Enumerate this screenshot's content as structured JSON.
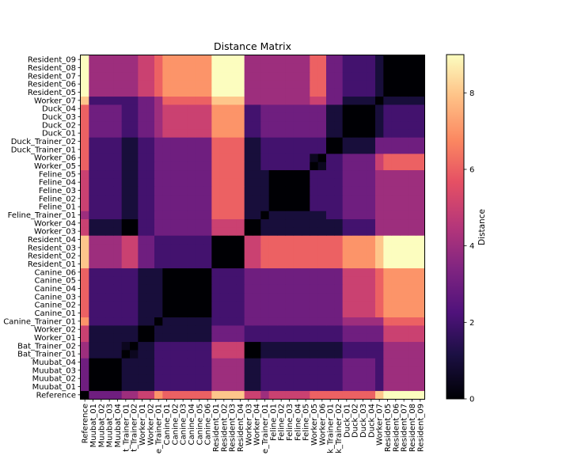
{
  "chart_data": {
    "type": "heatmap",
    "title": "Distance Matrix",
    "colorbar_label": "Distance",
    "colormap": "magma",
    "vmin": 0,
    "vmax": 9,
    "colorbar_ticks": [
      0,
      2,
      4,
      6,
      8
    ],
    "labels": [
      "Reference",
      "Muubat_01",
      "Muubat_02",
      "Muubat_03",
      "Muubat_04",
      "Bat_Trainer_01",
      "Bat_Trainer_02",
      "Worker_01",
      "Worker_02",
      "Canine_Trainer_01",
      "Canine_01",
      "Canine_02",
      "Canine_03",
      "Canine_04",
      "Canine_05",
      "Canine_06",
      "Resident_01",
      "Resident_02",
      "Resident_03",
      "Resident_04",
      "Worker_03",
      "Worker_04",
      "Feline_Trainer_01",
      "Feline_01",
      "Feline_02",
      "Feline_03",
      "Feline_04",
      "Feline_05",
      "Worker_05",
      "Worker_06",
      "Duck_Trainer_01",
      "Duck_Trainer_02",
      "Duck_01",
      "Duck_02",
      "Duck_03",
      "Duck_04",
      "Worker_07",
      "Resident_05",
      "Resident_06",
      "Resident_07",
      "Resident_08",
      "Resident_09"
    ],
    "x_tick_labels": [
      "Reference",
      "Muubat_01",
      "Muubat_02",
      "Muubat_03",
      "Muubat_04",
      "t_Trainer_01",
      "t_Trainer_02",
      "Worker_01",
      "Worker_02",
      "e_Trainer_01",
      "Canine_01",
      "Canine_02",
      "Canine_03",
      "Canine_04",
      "Canine_05",
      "Canine_06",
      "Resident_01",
      "Resident_02",
      "Resident_03",
      "Resident_04",
      "Worker_03",
      "Worker_04",
      "e_Trainer_01",
      "Feline_01",
      "Feline_02",
      "Feline_03",
      "Feline_04",
      "Feline_05",
      "Worker_05",
      "Worker_06",
      "k_Trainer_01",
      "k_Trainer_02",
      "Duck_01",
      "Duck_02",
      "Duck_03",
      "Duck_04",
      "Worker_07",
      "Resident_05",
      "Resident_06",
      "Resident_07",
      "Resident_08",
      "Resident_09"
    ],
    "y_tick_labels": [
      "Reference",
      "Muubat_01",
      "Muubat_02",
      "Muubat_03",
      "Muubat_04",
      "Bat_Trainer_01",
      "Bat_Trainer_02",
      "Worker_01",
      "Worker_02",
      "Canine_Trainer_01",
      "Canine_01",
      "Canine_02",
      "Canine_03",
      "Canine_04",
      "Canine_05",
      "Canine_06",
      "Resident_01",
      "Resident_02",
      "Resident_03",
      "Resident_04",
      "Worker_03",
      "Worker_04",
      "Feline_Trainer_01",
      "Feline_01",
      "Feline_02",
      "Feline_03",
      "Feline_04",
      "Feline_05",
      "Worker_05",
      "Worker_06",
      "Duck_Trainer_01",
      "Duck_Trainer_02",
      "Duck_01",
      "Duck_02",
      "Duck_03",
      "Duck_04",
      "Worker_07",
      "Resident_05",
      "Resident_06",
      "Resident_07",
      "Resident_08",
      "Resident_09"
    ],
    "groups": [
      {
        "start": 0,
        "end": 1
      },
      {
        "start": 1,
        "end": 5
      },
      {
        "start": 5,
        "end": 7
      },
      {
        "start": 7,
        "end": 9
      },
      {
        "start": 9,
        "end": 10
      },
      {
        "start": 10,
        "end": 16
      },
      {
        "start": 16,
        "end": 20
      },
      {
        "start": 20,
        "end": 22
      },
      {
        "start": 22,
        "end": 23
      },
      {
        "start": 23,
        "end": 28
      },
      {
        "start": 28,
        "end": 30
      },
      {
        "start": 30,
        "end": 32
      },
      {
        "start": 32,
        "end": 36
      },
      {
        "start": 36,
        "end": 37
      },
      {
        "start": 37,
        "end": 42
      }
    ],
    "group_distances": [
      [
        0,
        3,
        4,
        5,
        7,
        6,
        8,
        5,
        4,
        5,
        6,
        6,
        6,
        8,
        9
      ],
      [
        3,
        0,
        1,
        1,
        2,
        2,
        4,
        1,
        2,
        2,
        2,
        2,
        3,
        2,
        4
      ],
      [
        4,
        1,
        0.5,
        1,
        2,
        2,
        5,
        0,
        1,
        1,
        1,
        1,
        2,
        2,
        4
      ],
      [
        5,
        1,
        1,
        0,
        1,
        1,
        3,
        2,
        2,
        2,
        2,
        2,
        3,
        3,
        5
      ],
      [
        7,
        2,
        2,
        1,
        0,
        1,
        2,
        3,
        3,
        3,
        3,
        3,
        4,
        4,
        6
      ],
      [
        6,
        2,
        2,
        1,
        1,
        0,
        2,
        3,
        3,
        3,
        3,
        3,
        5,
        6,
        7
      ],
      [
        8,
        4,
        5,
        3,
        2,
        2,
        0,
        5,
        6,
        6,
        6,
        6,
        7,
        8,
        9
      ],
      [
        5,
        1,
        0,
        2,
        3,
        3,
        5,
        0,
        1,
        1,
        1,
        1,
        2,
        4,
        4
      ],
      [
        4,
        2,
        1,
        2,
        3,
        3,
        6,
        1,
        1,
        1,
        1,
        2,
        3,
        4,
        4
      ],
      [
        5,
        2,
        1,
        2,
        3,
        3,
        6,
        1,
        1,
        0,
        2,
        2,
        3,
        4,
        4
      ],
      [
        6,
        2,
        1,
        2,
        3,
        3,
        6,
        1,
        2,
        2,
        0.5,
        2,
        3,
        5,
        6
      ],
      [
        6,
        2,
        1,
        2,
        3,
        3,
        6,
        1,
        2,
        2,
        2,
        0,
        1,
        3,
        3
      ],
      [
        6,
        3,
        2,
        3,
        4,
        5,
        7,
        2,
        3,
        3,
        3,
        1,
        0,
        1,
        2
      ],
      [
        8,
        2,
        2,
        3,
        4,
        6,
        8,
        4,
        4,
        4,
        5,
        3,
        1,
        0,
        1
      ],
      [
        9,
        4,
        4,
        5,
        6,
        7,
        9,
        4,
        4,
        4,
        6,
        3,
        2,
        1,
        0
      ]
    ]
  }
}
